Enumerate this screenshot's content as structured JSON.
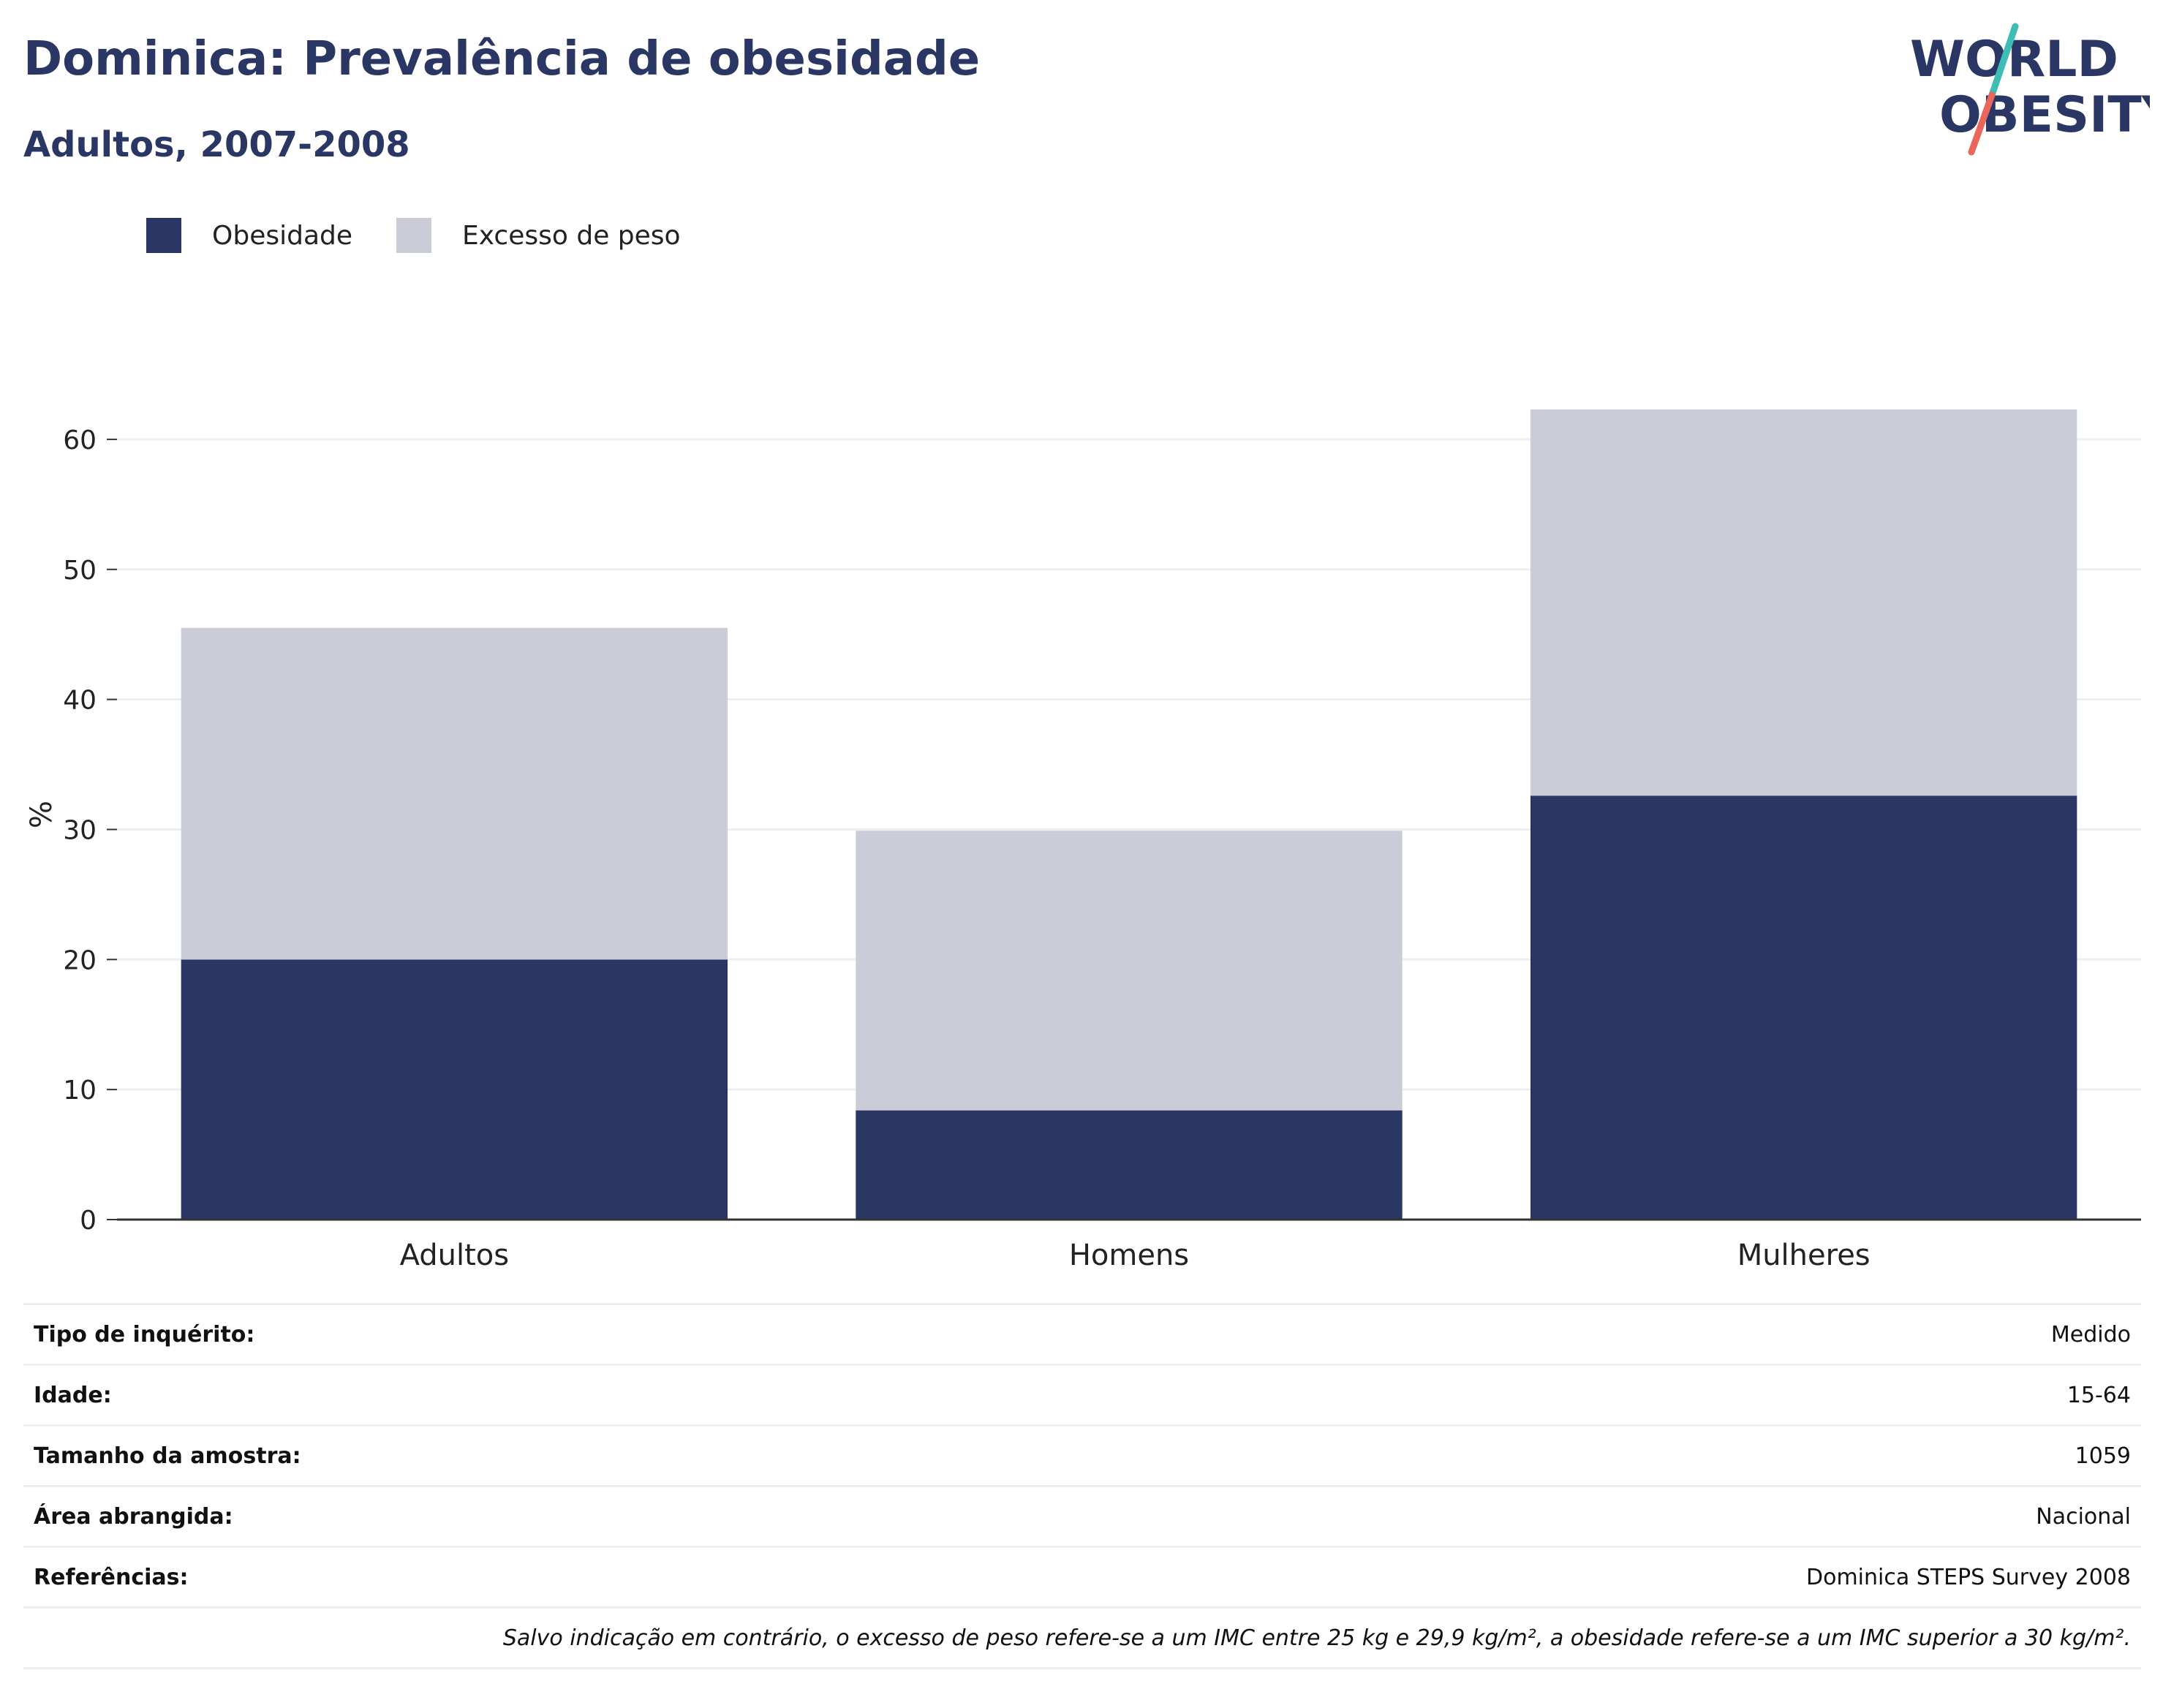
{
  "title": "Dominica: Prevalência de obesidade",
  "subtitle": "Adultos, 2007-2008",
  "logo": {
    "line1": "WORLD",
    "line2": "OBESITY",
    "colors": {
      "text": "#2a3663",
      "slash_top": "#3dbdb4",
      "slash_bottom": "#e8665a"
    }
  },
  "legend": [
    {
      "label": "Obesidade",
      "color": "#2a3663"
    },
    {
      "label": "Excesso de peso",
      "color": "#cacdd8"
    }
  ],
  "chart_data": {
    "type": "bar",
    "stacked": true,
    "categories": [
      "Adultos",
      "Homens",
      "Mulheres"
    ],
    "series": [
      {
        "name": "Obesidade",
        "values": [
          20.0,
          8.4,
          32.6
        ],
        "color": "#2a3663"
      },
      {
        "name": "Excesso de peso",
        "values": [
          25.5,
          21.5,
          29.7
        ],
        "color": "#cacdd8"
      }
    ],
    "ylabel": "%",
    "ylim": [
      0,
      62.3
    ],
    "yticks": [
      0,
      10,
      20,
      30,
      40,
      50,
      60
    ],
    "grid": true,
    "legend_position": "top-left"
  },
  "info": [
    {
      "key": "Tipo de inquérito:",
      "value": "Medido"
    },
    {
      "key": "Idade:",
      "value": "15-64"
    },
    {
      "key": "Tamanho da amostra:",
      "value": "1059"
    },
    {
      "key": "Área abrangida:",
      "value": "Nacional"
    },
    {
      "key": "Referências:",
      "value": "Dominica STEPS Survey 2008"
    }
  ],
  "note": "Salvo indicação em contrário, o excesso de peso refere-se a um IMC entre 25 kg e 29,9 kg/m², a obesidade refere-se a um IMC superior a 30 kg/m²."
}
